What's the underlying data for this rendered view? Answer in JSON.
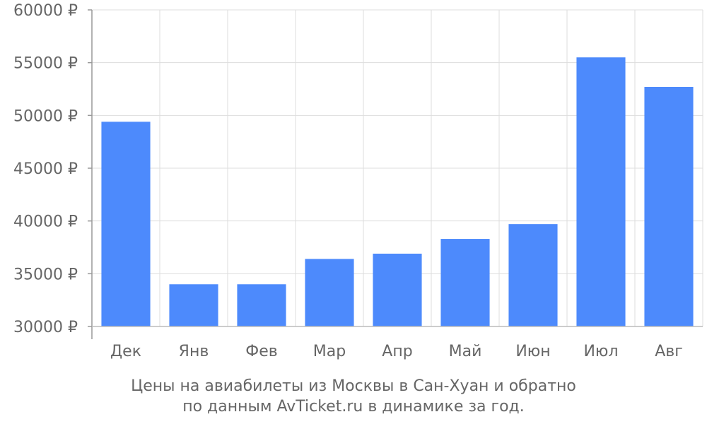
{
  "chart_data": {
    "type": "bar",
    "categories": [
      "Дек",
      "Янв",
      "Фев",
      "Мар",
      "Апр",
      "Май",
      "Июн",
      "Июл",
      "Авг"
    ],
    "values": [
      49400,
      34000,
      34000,
      36400,
      36900,
      38300,
      39700,
      55500,
      52700
    ],
    "y_ticks": [
      "30000 ₽",
      "35000 ₽",
      "40000 ₽",
      "45000 ₽",
      "50000 ₽",
      "55000 ₽",
      "60000 ₽"
    ],
    "ylim": [
      30000,
      60000
    ],
    "grid": true,
    "bar_color": "#4d8afc",
    "caption_line1": "Цены на авиабилеты из Москвы в Сан-Хуан и обратно",
    "caption_line2": "по данным AvTicket.ru в динамике за год."
  }
}
